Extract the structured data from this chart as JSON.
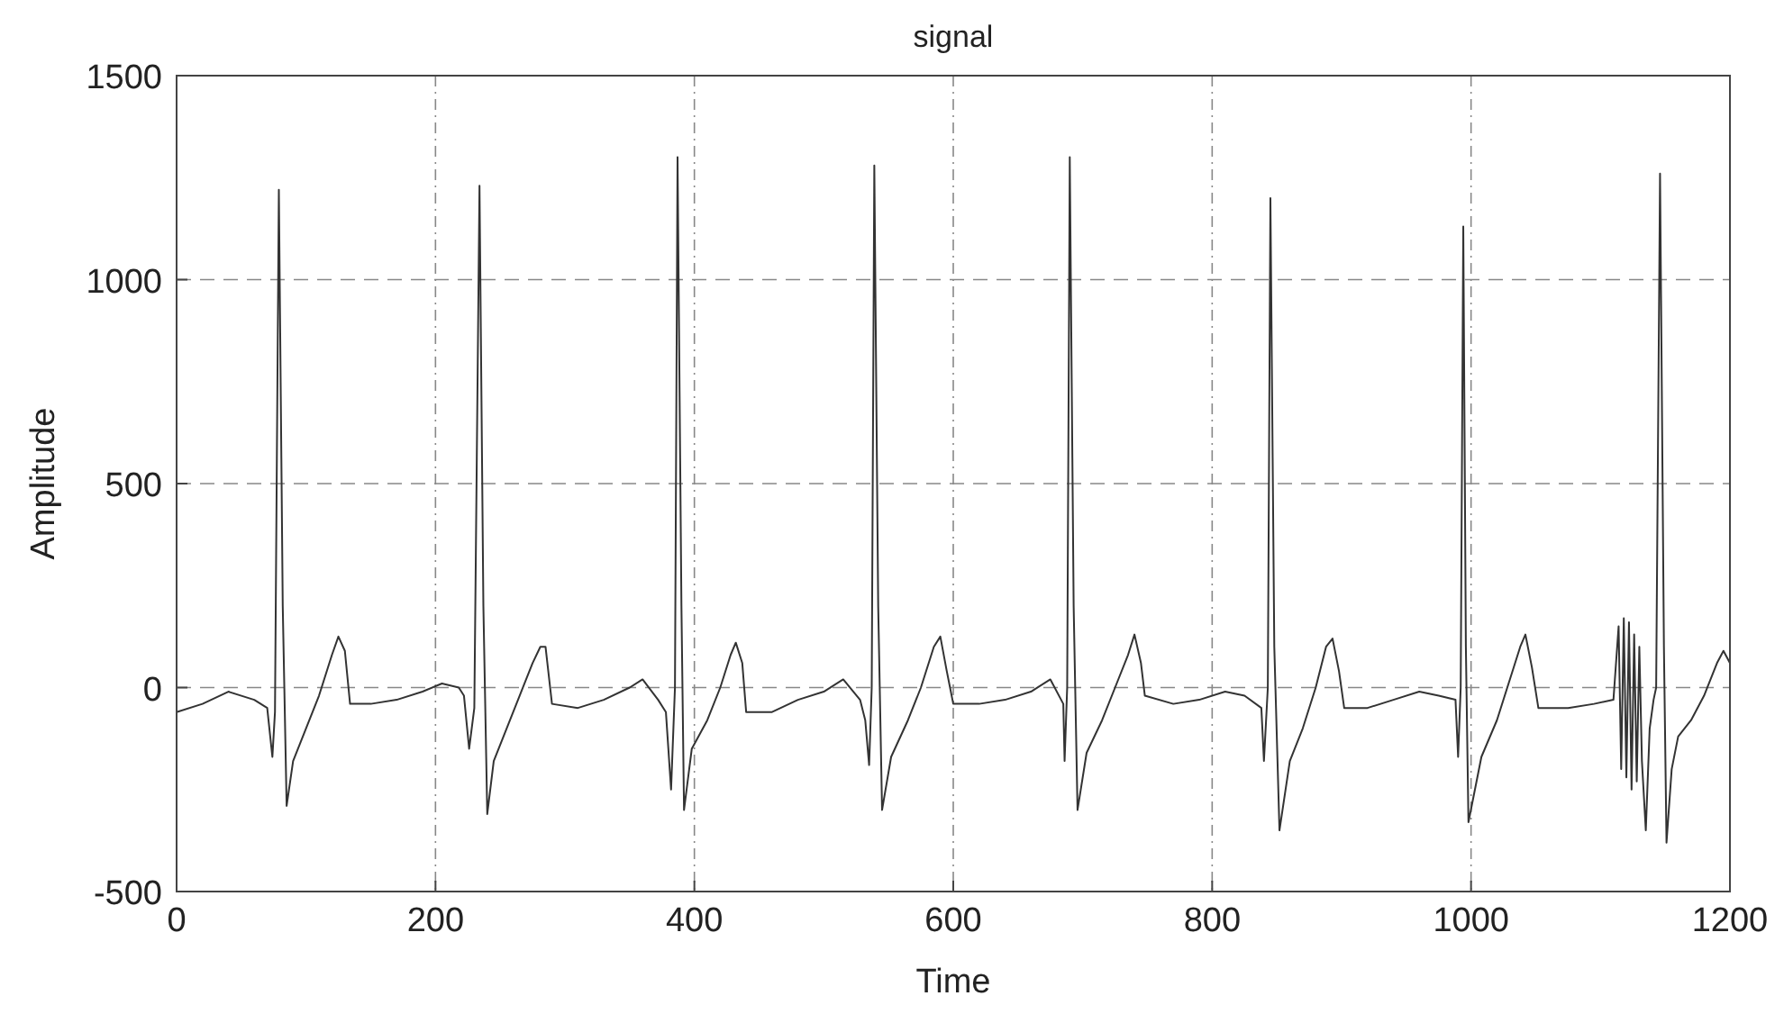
{
  "chart_data": {
    "type": "line",
    "title": "signal",
    "xlabel": "Time",
    "ylabel": "Amplitude",
    "xlim": [
      0,
      1200
    ],
    "xticks": [
      0,
      200,
      400,
      600,
      800,
      1000,
      1200
    ],
    "ylim": [
      -500,
      1500
    ],
    "yticks": [
      -500,
      0,
      500,
      1000,
      1500
    ],
    "grid": true,
    "line_style": "solid",
    "series": [
      {
        "color": "#333333",
        "x": [
          0,
          20,
          40,
          60,
          70,
          74,
          76,
          79,
          82,
          85,
          90,
          100,
          110,
          120,
          125,
          130,
          134,
          150,
          170,
          190,
          205,
          218,
          222,
          226,
          230,
          234,
          237,
          240,
          245,
          255,
          265,
          275,
          281,
          285,
          290,
          310,
          330,
          350,
          360,
          372,
          378,
          382,
          385,
          387,
          390,
          392,
          398,
          410,
          420,
          428,
          432,
          437,
          440,
          460,
          480,
          500,
          515,
          528,
          532,
          535,
          537,
          539,
          542,
          545,
          552,
          565,
          575,
          585,
          590,
          595,
          600,
          620,
          640,
          660,
          675,
          685,
          686,
          688,
          690,
          693,
          696,
          703,
          715,
          725,
          735,
          740,
          745,
          748,
          770,
          790,
          810,
          825,
          838,
          840,
          843,
          845,
          848,
          852,
          860,
          870,
          880,
          888,
          893,
          898,
          902,
          920,
          940,
          960,
          975,
          988,
          990,
          992,
          994,
          996,
          998,
          1008,
          1020,
          1030,
          1038,
          1042,
          1047,
          1052,
          1075,
          1095,
          1110,
          1114,
          1116,
          1118,
          1120,
          1122,
          1124,
          1126,
          1128,
          1130,
          1132,
          1135,
          1138,
          1141,
          1143,
          1146,
          1149,
          1151,
          1155,
          1160,
          1170,
          1180,
          1190,
          1195,
          1200
        ],
        "values": [
          -60,
          -40,
          -10,
          -30,
          -50,
          -170,
          -60,
          1220,
          200,
          -290,
          -180,
          -100,
          -20,
          80,
          125,
          90,
          -40,
          -40,
          -30,
          -10,
          10,
          0,
          -20,
          -150,
          -50,
          1230,
          200,
          -310,
          -180,
          -100,
          -20,
          60,
          100,
          100,
          -40,
          -50,
          -30,
          0,
          20,
          -30,
          -60,
          -250,
          0,
          1300,
          200,
          -300,
          -150,
          -80,
          0,
          80,
          110,
          60,
          -60,
          -60,
          -30,
          -10,
          20,
          -30,
          -80,
          -190,
          0,
          1280,
          200,
          -300,
          -170,
          -80,
          0,
          100,
          125,
          40,
          -40,
          -40,
          -30,
          -10,
          20,
          -40,
          -180,
          0,
          1300,
          200,
          -300,
          -160,
          -80,
          0,
          80,
          130,
          60,
          -20,
          -40,
          -30,
          -10,
          -20,
          -50,
          -180,
          0,
          1200,
          100,
          -350,
          -180,
          -100,
          0,
          100,
          120,
          40,
          -50,
          -50,
          -30,
          -10,
          -20,
          -30,
          -170,
          0,
          1130,
          100,
          -330,
          -170,
          -80,
          20,
          100,
          130,
          50,
          -50,
          -50,
          -40,
          -30,
          150,
          -200,
          170,
          -220,
          160,
          -250,
          130,
          -230,
          100,
          -180,
          -350,
          -100,
          -30,
          0,
          1260,
          100,
          -380,
          -200,
          -120,
          -80,
          -20,
          60,
          90,
          60
        ]
      }
    ]
  }
}
